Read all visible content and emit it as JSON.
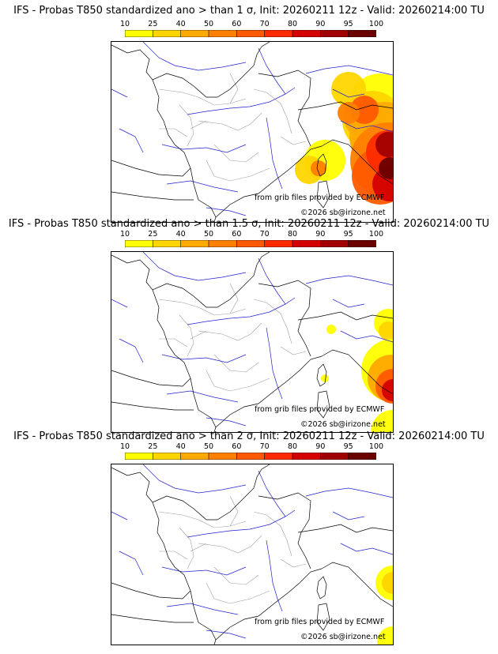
{
  "panels": [
    {
      "title": "IFS - Probas T850  standardized ano > than 1 σ, Init: 20260211 12z - Valid: 20260214:00 TU",
      "sigma": 1,
      "credit_source": "from grib files provided by ECMWF",
      "credit_copyright": "©2026 sb@irizone.net"
    },
    {
      "title": "IFS - Probas T850  standardized ano > than 1.5 σ, Init: 20260211 12z - Valid: 20260214:00 TU",
      "sigma": 1.5,
      "credit_source": "from grib files provided by ECMWF",
      "credit_copyright": "©2026 sb@irizone.net"
    },
    {
      "title": "IFS - Probas T850  standardized ano > than 2 σ, Init: 20260211 12z - Valid: 20260214:00 TU",
      "sigma": 2,
      "credit_source": "from grib files provided by ECMWF",
      "credit_copyright": "©2026 sb@irizone.net"
    }
  ],
  "colorbar": {
    "ticks": [
      "10",
      "25",
      "40",
      "50",
      "60",
      "70",
      "80",
      "90",
      "95",
      "100"
    ],
    "colors": [
      "#ffff00",
      "#ffd500",
      "#ffaa00",
      "#ff8000",
      "#ff5a00",
      "#ff2b00",
      "#d40000",
      "#a00000",
      "#6a0000"
    ]
  },
  "colors": {
    "coast": "#000000",
    "rivers": "#2020d0",
    "regions": "#a0a0a0"
  }
}
